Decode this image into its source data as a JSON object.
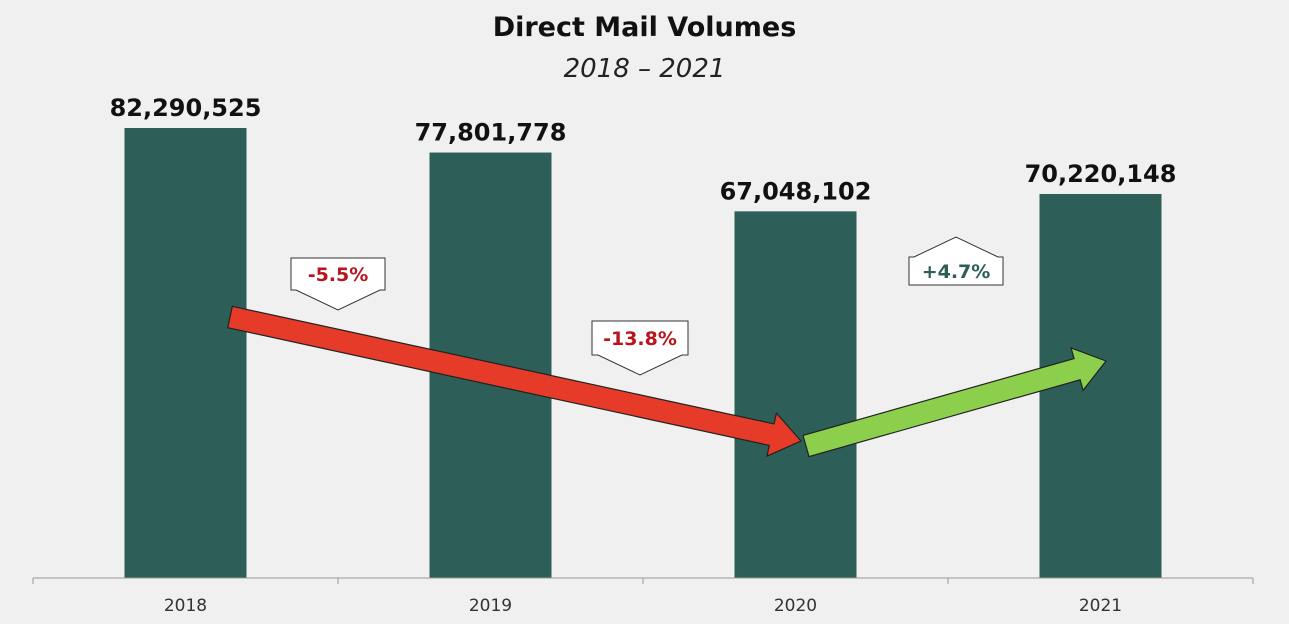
{
  "chart_data": {
    "type": "bar",
    "title": "Direct Mail Volumes",
    "subtitle": "2018 – 2021",
    "categories": [
      "2018",
      "2019",
      "2020",
      "2021"
    ],
    "values": [
      82290525,
      77801778,
      67048102,
      70220148
    ],
    "value_labels": [
      "82,290,525",
      "77,801,778",
      "67,048,102",
      "70,220,148"
    ],
    "xlabel": "",
    "ylabel": "",
    "ylim": [
      0,
      82290525
    ],
    "grid": false,
    "annotations": [
      {
        "text": "-5.5%",
        "from": "2018",
        "to": "2019",
        "direction": "down"
      },
      {
        "text": "-13.8%",
        "from": "2019",
        "to": "2020",
        "direction": "down"
      },
      {
        "text": "+4.7%",
        "from": "2020",
        "to": "2021",
        "direction": "up"
      }
    ]
  },
  "colors": {
    "bar": "#2d5e57",
    "down_arrow": "#e63b28",
    "up_arrow": "#8ccf4d",
    "down_text": "#b8161c",
    "up_text": "#2d5e57"
  }
}
